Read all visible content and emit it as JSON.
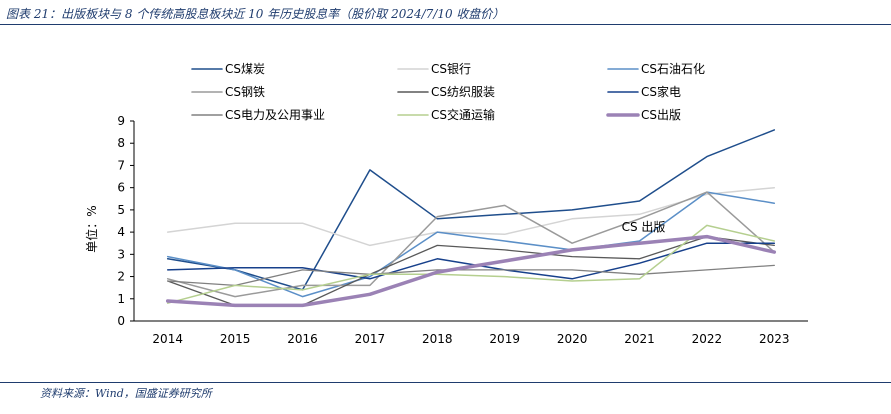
{
  "figure": {
    "title": "图表 21：出版板块与 8 个传统高股息板块近 10 年历史股息率（股价取 2024/7/10 收盘价）",
    "source": "资料来源：Wind，国盛证券研究所"
  },
  "chart_data": {
    "type": "line",
    "x": [
      "2014",
      "2015",
      "2016",
      "2017",
      "2018",
      "2019",
      "2020",
      "2021",
      "2022",
      "2023"
    ],
    "ylabel": "单位：%",
    "ylim": [
      0,
      9
    ],
    "yticks": [
      0,
      1,
      2,
      3,
      4,
      5,
      6,
      7,
      8,
      9
    ],
    "grid": false,
    "legend_position": "top",
    "annotation": {
      "text": "CS 出版",
      "x": "2021",
      "y": 3.6
    },
    "series": [
      {
        "name": "CS煤炭",
        "color": "#1f4e8c",
        "width": 1.5,
        "values": [
          2.8,
          2.3,
          1.4,
          6.8,
          4.6,
          4.8,
          5.0,
          5.4,
          7.4,
          8.6
        ]
      },
      {
        "name": "CS银行",
        "color": "#d4d4d4",
        "width": 1.5,
        "values": [
          4.0,
          4.4,
          4.4,
          3.4,
          4.0,
          3.9,
          4.6,
          4.8,
          5.7,
          6.0
        ]
      },
      {
        "name": "CS石油石化",
        "color": "#5b8fc7",
        "width": 1.5,
        "values": [
          2.9,
          2.3,
          1.1,
          2.0,
          4.0,
          3.6,
          3.2,
          3.6,
          5.8,
          5.3
        ]
      },
      {
        "name": "CS钢铁",
        "color": "#9a9a9a",
        "width": 1.5,
        "values": [
          1.9,
          1.1,
          1.6,
          1.6,
          4.7,
          5.2,
          3.5,
          4.6,
          5.8,
          3.1
        ]
      },
      {
        "name": "CS纺织服装",
        "color": "#595959",
        "width": 1.3,
        "values": [
          1.8,
          0.7,
          0.7,
          2.1,
          3.4,
          3.2,
          2.9,
          2.8,
          3.8,
          3.4
        ]
      },
      {
        "name": "CS家电",
        "color": "#17408b",
        "width": 1.5,
        "values": [
          2.3,
          2.4,
          2.4,
          1.9,
          2.8,
          2.3,
          1.9,
          2.6,
          3.5,
          3.5
        ]
      },
      {
        "name": "CS电力及公用事业",
        "color": "#808080",
        "width": 1.3,
        "values": [
          1.8,
          1.6,
          2.3,
          2.1,
          2.3,
          2.3,
          2.3,
          2.1,
          2.3,
          2.5
        ]
      },
      {
        "name": "CS交通运输",
        "color": "#b5cf8f",
        "width": 1.5,
        "values": [
          0.8,
          1.6,
          1.4,
          2.1,
          2.1,
          2.0,
          1.8,
          1.9,
          4.3,
          3.6
        ]
      },
      {
        "name": "CS出版",
        "color": "#9b82b5",
        "width": 3.5,
        "values": [
          0.9,
          0.7,
          0.7,
          1.2,
          2.2,
          2.7,
          3.2,
          3.5,
          3.8,
          3.1
        ]
      }
    ]
  }
}
